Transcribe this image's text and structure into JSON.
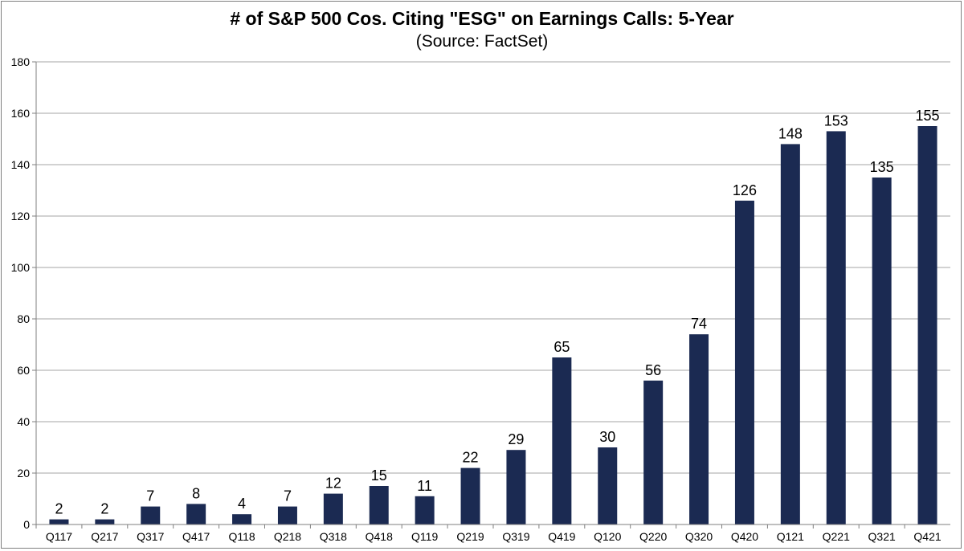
{
  "chart_data": {
    "type": "bar",
    "title": "# of S&P 500 Cos. Citing \"ESG\" on Earnings Calls: 5-Year",
    "subtitle": "(Source: FactSet)",
    "xlabel": "",
    "ylabel": "",
    "categories": [
      "Q117",
      "Q217",
      "Q317",
      "Q417",
      "Q118",
      "Q218",
      "Q318",
      "Q418",
      "Q119",
      "Q219",
      "Q319",
      "Q419",
      "Q120",
      "Q220",
      "Q320",
      "Q420",
      "Q121",
      "Q221",
      "Q321",
      "Q421"
    ],
    "values": [
      2,
      2,
      7,
      8,
      4,
      7,
      12,
      15,
      11,
      22,
      29,
      65,
      30,
      56,
      74,
      126,
      148,
      153,
      135,
      155
    ],
    "ylim": [
      0,
      180
    ],
    "yticks": [
      0,
      20,
      40,
      60,
      80,
      100,
      120,
      140,
      160,
      180
    ],
    "grid": true,
    "data_labels": true,
    "legend": "none",
    "colors": {
      "bar": "#1b2a52",
      "grid": "#a6a6a6",
      "axis": "#7f7f7f"
    }
  }
}
